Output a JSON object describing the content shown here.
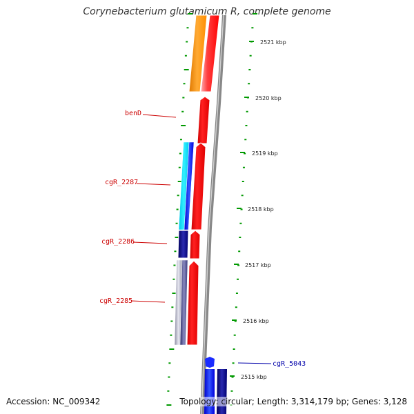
{
  "header": {
    "title": "Corynebacterium glutamicum R, complete genome"
  },
  "footer": {
    "accession": "Accession: NC_009342",
    "summary": "Topology: circular; Length: 3,314,179 bp; Genes: 3,128"
  },
  "scale": {
    "ticks": [
      "2521 kbp",
      "2520 kbp",
      "2519 kbp",
      "2518 kbp",
      "2517 kbp",
      "2516 kbp",
      "2515 kbp"
    ]
  },
  "genes": {
    "benD": "benD",
    "cgR_2287": "cgR_2287",
    "cgR_2286": "cgR_2286",
    "cgR_2285": "cgR_2285",
    "cgR_5043": "cgR_5043"
  },
  "colors": {
    "cds_red": "#ff0000",
    "orange": "#ff9900",
    "cyan": "#00e5ff",
    "blue": "#0000ff",
    "navy": "#000080",
    "grey_track": "#888888",
    "tick_green": "#009900",
    "label_red": "#cc0000",
    "label_blue": "#0000aa"
  }
}
